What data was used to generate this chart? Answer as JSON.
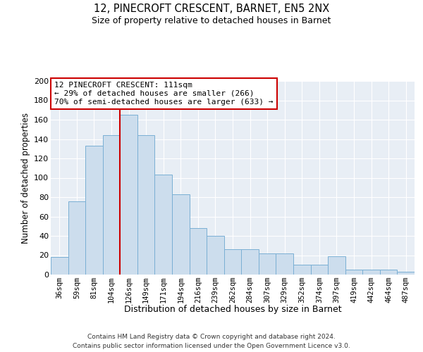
{
  "title1": "12, PINECROFT CRESCENT, BARNET, EN5 2NX",
  "title2": "Size of property relative to detached houses in Barnet",
  "xlabel": "Distribution of detached houses by size in Barnet",
  "ylabel": "Number of detached properties",
  "bin_labels": [
    "36sqm",
    "59sqm",
    "81sqm",
    "104sqm",
    "126sqm",
    "149sqm",
    "171sqm",
    "194sqm",
    "216sqm",
    "239sqm",
    "262sqm",
    "284sqm",
    "307sqm",
    "329sqm",
    "352sqm",
    "374sqm",
    "397sqm",
    "419sqm",
    "442sqm",
    "464sqm",
    "487sqm"
  ],
  "bar_heights": [
    18,
    76,
    133,
    144,
    165,
    144,
    103,
    83,
    48,
    40,
    26,
    26,
    22,
    22,
    10,
    10,
    19,
    5,
    5,
    5,
    3
  ],
  "bar_color": "#ccdded",
  "bar_edge_color": "#7aafd4",
  "vline_index": 3.5,
  "vline_color": "#cc0000",
  "annotation_text": "12 PINECROFT CRESCENT: 111sqm\n← 29% of detached houses are smaller (266)\n70% of semi-detached houses are larger (633) →",
  "annotation_box_facecolor": "#ffffff",
  "annotation_box_edgecolor": "#cc0000",
  "footer1": "Contains HM Land Registry data © Crown copyright and database right 2024.",
  "footer2": "Contains public sector information licensed under the Open Government Licence v3.0.",
  "ylim_max": 200,
  "yticks": [
    0,
    20,
    40,
    60,
    80,
    100,
    120,
    140,
    160,
    180,
    200
  ],
  "plot_bg_color": "#e8eef5",
  "background_color": "#ffffff",
  "grid_color": "#ffffff"
}
